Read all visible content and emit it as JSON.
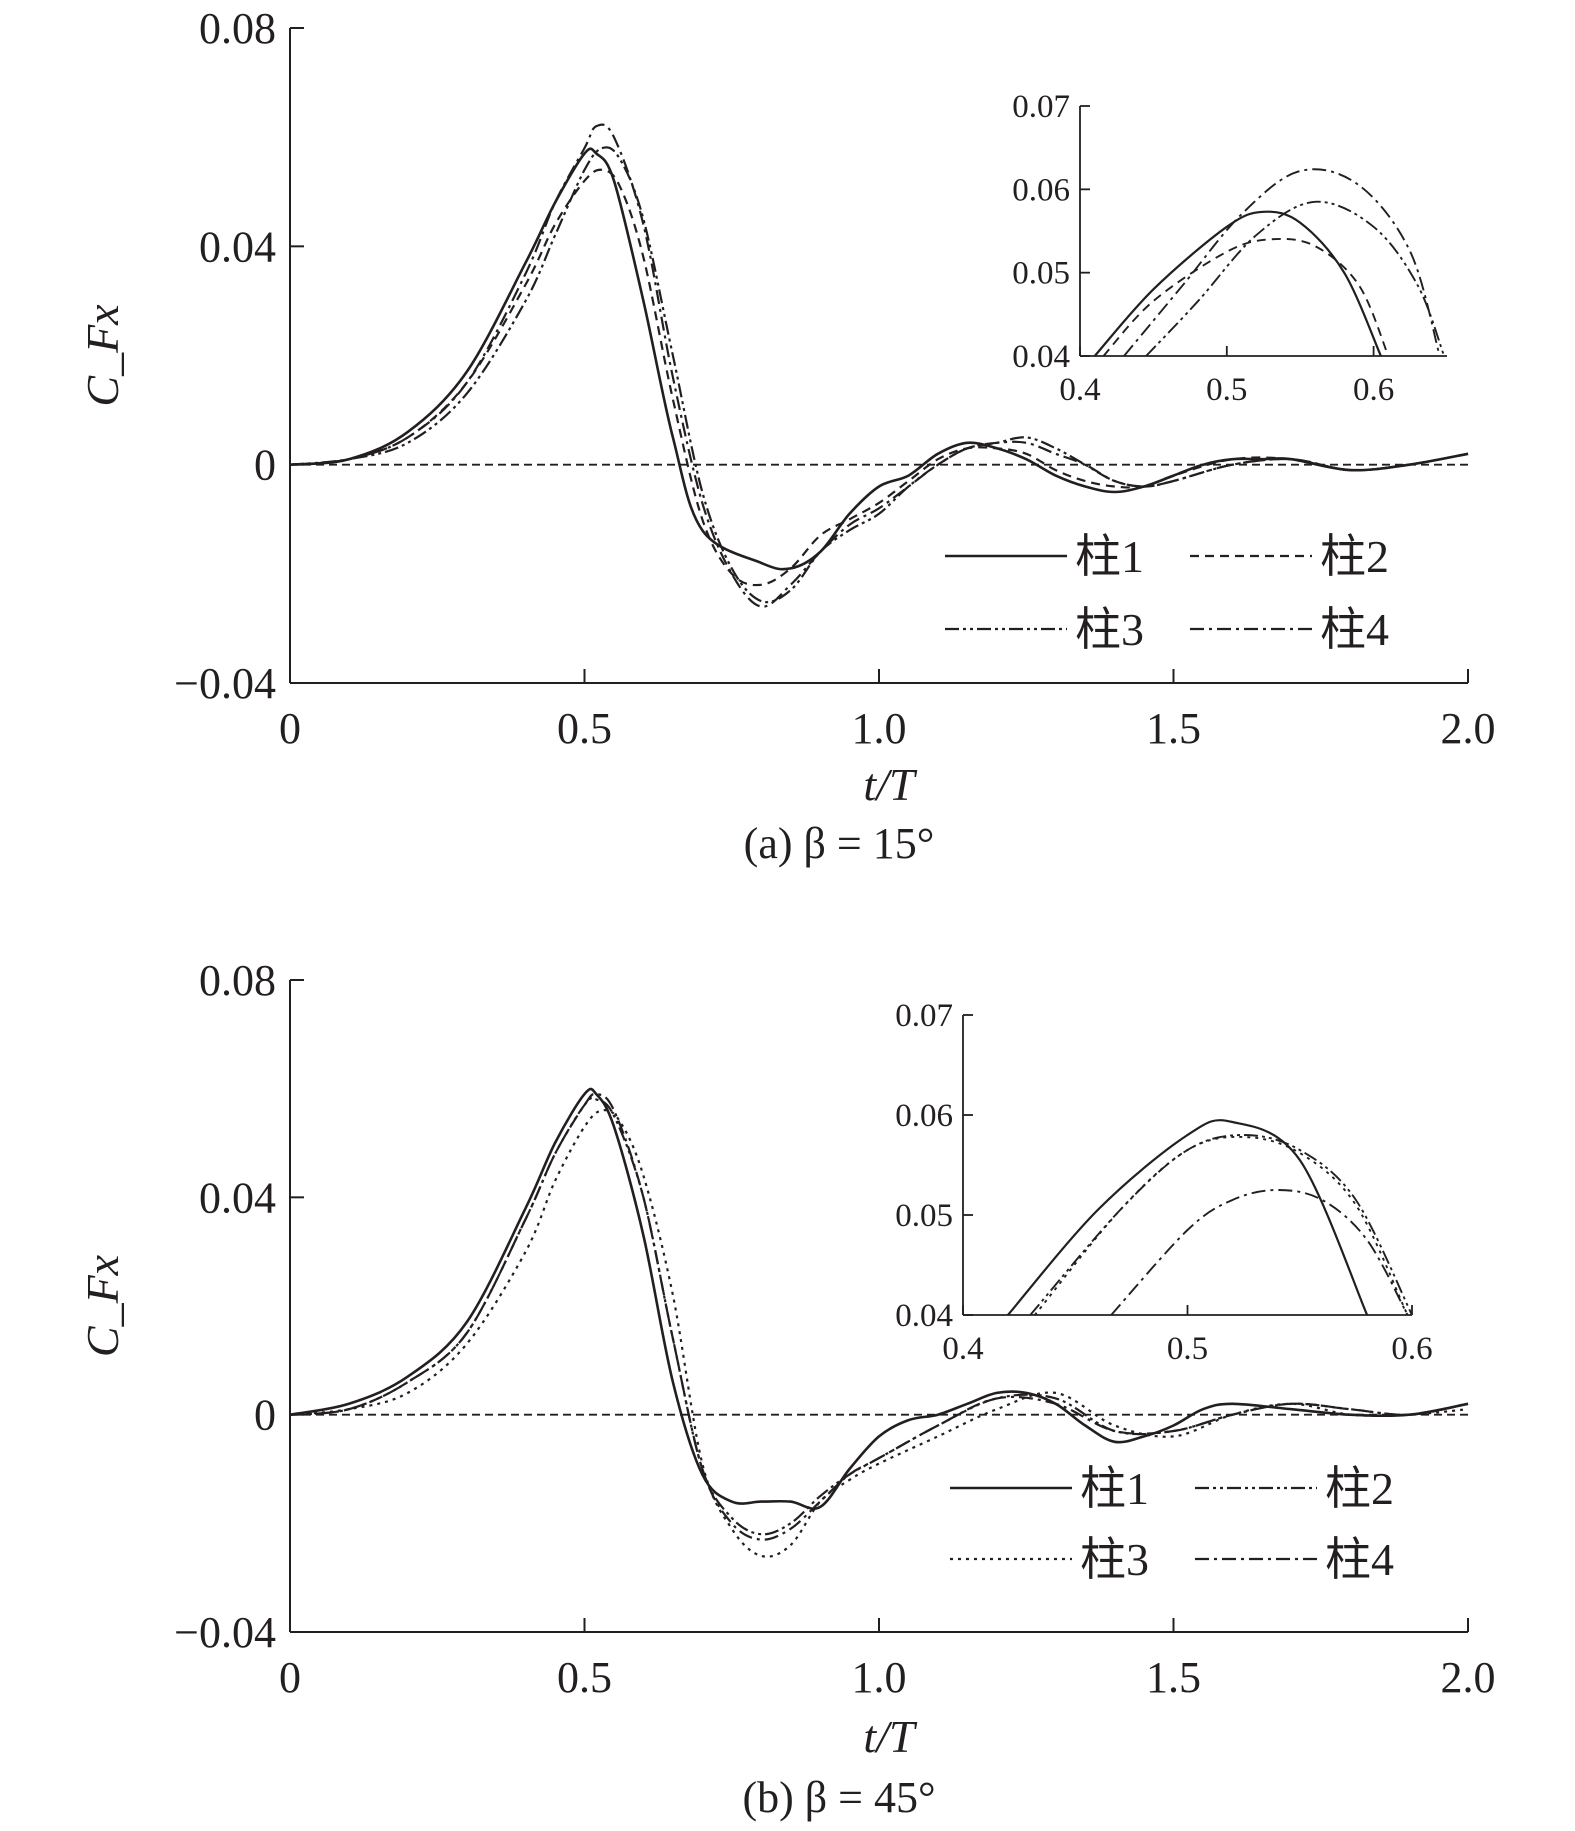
{
  "chart_data": [
    {
      "panel": "a",
      "type": "line",
      "caption": "(a) β = 15°",
      "xlabel": "t/T",
      "ylabel": "C_Fx",
      "xlim": [
        0,
        2.0
      ],
      "ylim": [
        -0.04,
        0.08
      ],
      "xticks": [
        "0",
        "0.5",
        "1.0",
        "1.5",
        "2.0"
      ],
      "yticks": [
        "−0.04",
        "0",
        "0.04",
        "0.08"
      ],
      "legend_position": "lower-right",
      "series": [
        {
          "name": "柱1",
          "dash": "solid",
          "x": [
            0,
            0.1,
            0.2,
            0.3,
            0.4,
            0.45,
            0.5,
            0.52,
            0.55,
            0.6,
            0.65,
            0.7,
            0.8,
            0.85,
            0.9,
            0.95,
            1.0,
            1.05,
            1.1,
            1.15,
            1.2,
            1.25,
            1.3,
            1.35,
            1.4,
            1.45,
            1.5,
            1.55,
            1.6,
            1.65,
            1.7,
            1.8,
            1.9,
            2.0
          ],
          "y": [
            0,
            0.001,
            0.006,
            0.017,
            0.037,
            0.048,
            0.057,
            0.057,
            0.052,
            0.03,
            0.005,
            -0.012,
            -0.018,
            -0.019,
            -0.016,
            -0.009,
            -0.004,
            -0.002,
            0.002,
            0.004,
            0.003,
            0.001,
            -0.002,
            -0.004,
            -0.005,
            -0.004,
            -0.002,
            0,
            0.001,
            0.001,
            0.001,
            -0.001,
            0.0,
            0.002
          ]
        },
        {
          "name": "柱2",
          "dash": "dash",
          "x": [
            0,
            0.1,
            0.2,
            0.3,
            0.4,
            0.45,
            0.5,
            0.53,
            0.56,
            0.6,
            0.65,
            0.7,
            0.75,
            0.8,
            0.85,
            0.9,
            0.95,
            1.0,
            1.05,
            1.1,
            1.15,
            1.2,
            1.25,
            1.3,
            1.35,
            1.4,
            1.45,
            1.5,
            1.6,
            1.7,
            1.8,
            1.9,
            2.0
          ],
          "y": [
            0,
            0.001,
            0.005,
            0.015,
            0.033,
            0.044,
            0.052,
            0.054,
            0.051,
            0.038,
            0.012,
            -0.01,
            -0.02,
            -0.022,
            -0.019,
            -0.013,
            -0.01,
            -0.007,
            -0.003,
            0.001,
            0.003,
            0.003,
            0.002,
            -0.001,
            -0.003,
            -0.004,
            -0.004,
            -0.002,
            0.001,
            0.001,
            -0.001,
            0.0,
            0.002
          ]
        },
        {
          "name": "柱3",
          "dash": "dashdotdot",
          "x": [
            0,
            0.1,
            0.2,
            0.3,
            0.4,
            0.45,
            0.5,
            0.53,
            0.56,
            0.6,
            0.65,
            0.7,
            0.75,
            0.8,
            0.85,
            0.9,
            0.95,
            1.0,
            1.05,
            1.1,
            1.15,
            1.2,
            1.25,
            1.3,
            1.35,
            1.4,
            1.45,
            1.5,
            1.6,
            1.7,
            1.8,
            1.9,
            2.0
          ],
          "y": [
            0,
            0.001,
            0.004,
            0.013,
            0.03,
            0.042,
            0.054,
            0.058,
            0.056,
            0.045,
            0.02,
            -0.005,
            -0.019,
            -0.025,
            -0.023,
            -0.016,
            -0.012,
            -0.009,
            -0.004,
            0.0,
            0.003,
            0.004,
            0.005,
            0.003,
            0.0,
            -0.003,
            -0.004,
            -0.003,
            0.0,
            0.001,
            -0.001,
            0.0,
            0.002
          ]
        },
        {
          "name": "柱4",
          "dash": "dashdot",
          "x": [
            0,
            0.1,
            0.2,
            0.3,
            0.4,
            0.45,
            0.5,
            0.52,
            0.55,
            0.6,
            0.65,
            0.7,
            0.75,
            0.8,
            0.85,
            0.9,
            0.95,
            1.0,
            1.05,
            1.1,
            1.15,
            1.2,
            1.25,
            1.3,
            1.35,
            1.4,
            1.45,
            1.5,
            1.6,
            1.7,
            1.8,
            1.9,
            2.0
          ],
          "y": [
            0,
            0.001,
            0.005,
            0.015,
            0.035,
            0.048,
            0.058,
            0.062,
            0.06,
            0.044,
            0.016,
            -0.007,
            -0.02,
            -0.026,
            -0.022,
            -0.016,
            -0.011,
            -0.008,
            -0.004,
            0.0,
            0.003,
            0.004,
            0.004,
            0.002,
            0.0,
            -0.003,
            -0.004,
            -0.003,
            0.0,
            0.001,
            -0.001,
            0.0,
            0.002
          ]
        }
      ],
      "inset": {
        "xlim": [
          0.4,
          0.65
        ],
        "ylim": [
          0.04,
          0.07
        ],
        "xticks": [
          "0.4",
          "0.5",
          "0.6"
        ],
        "yticks": [
          "0.04",
          "0.05",
          "0.06",
          "0.07"
        ],
        "series": [
          {
            "name": "柱1",
            "x": [
              0.41,
              0.45,
              0.5,
              0.525,
              0.55,
              0.58,
              0.605
            ],
            "y": [
              0.04,
              0.048,
              0.0555,
              0.0573,
              0.056,
              0.05,
              0.04
            ]
          },
          {
            "name": "柱2",
            "x": [
              0.416,
              0.45,
              0.5,
              0.53,
              0.56,
              0.59,
              0.61
            ],
            "y": [
              0.04,
              0.0466,
              0.0525,
              0.054,
              0.0532,
              0.0485,
              0.04
            ]
          },
          {
            "name": "柱3",
            "x": [
              0.445,
              0.48,
              0.52,
              0.56,
              0.6,
              0.63,
              0.648
            ],
            "y": [
              0.04,
              0.0465,
              0.0545,
              0.0585,
              0.0555,
              0.0485,
              0.04
            ]
          },
          {
            "name": "柱4",
            "x": [
              0.43,
              0.47,
              0.51,
              0.55,
              0.59,
              0.625,
              0.645
            ],
            "y": [
              0.04,
              0.0485,
              0.057,
              0.0622,
              0.0605,
              0.0525,
              0.04
            ]
          }
        ]
      }
    },
    {
      "panel": "b",
      "type": "line",
      "caption": "(b) β = 45°",
      "xlabel": "t/T",
      "ylabel": "C_Fx",
      "xlim": [
        0,
        2.0
      ],
      "ylim": [
        -0.04,
        0.08
      ],
      "xticks": [
        "0",
        "0.5",
        "1.0",
        "1.5",
        "2.0"
      ],
      "yticks": [
        "−0.04",
        "0",
        "0.04",
        "0.08"
      ],
      "legend_position": "lower-right",
      "series": [
        {
          "name": "柱1",
          "dash": "solid",
          "x": [
            0,
            0.1,
            0.2,
            0.3,
            0.4,
            0.45,
            0.5,
            0.52,
            0.55,
            0.6,
            0.65,
            0.7,
            0.75,
            0.8,
            0.85,
            0.9,
            0.95,
            1.0,
            1.05,
            1.1,
            1.15,
            1.2,
            1.25,
            1.3,
            1.35,
            1.4,
            1.45,
            1.5,
            1.55,
            1.6,
            1.7,
            1.8,
            1.9,
            2.0
          ],
          "y": [
            0,
            0.002,
            0.007,
            0.017,
            0.038,
            0.05,
            0.059,
            0.059,
            0.053,
            0.033,
            0.006,
            -0.011,
            -0.016,
            -0.016,
            -0.016,
            -0.017,
            -0.01,
            -0.004,
            -0.001,
            0.0,
            0.002,
            0.004,
            0.004,
            0.002,
            -0.002,
            -0.005,
            -0.004,
            -0.002,
            0.001,
            0.002,
            0.001,
            0.0,
            0.0,
            0.002
          ]
        },
        {
          "name": "柱2",
          "dash": "dashdotdot",
          "x": [
            0,
            0.1,
            0.2,
            0.3,
            0.4,
            0.45,
            0.5,
            0.52,
            0.55,
            0.6,
            0.65,
            0.7,
            0.75,
            0.8,
            0.85,
            0.9,
            0.95,
            1.0,
            1.1,
            1.2,
            1.3,
            1.4,
            1.5,
            1.6,
            1.7,
            1.8,
            1.9,
            2.0
          ],
          "y": [
            0,
            0.001,
            0.006,
            0.015,
            0.036,
            0.048,
            0.057,
            0.058,
            0.055,
            0.04,
            0.014,
            -0.01,
            -0.019,
            -0.022,
            -0.02,
            -0.015,
            -0.011,
            -0.008,
            -0.002,
            0.003,
            0.003,
            -0.003,
            -0.003,
            0.0,
            0.002,
            0.001,
            0.0,
            0.002
          ]
        },
        {
          "name": "柱3",
          "dash": "dot",
          "x": [
            0,
            0.1,
            0.2,
            0.3,
            0.4,
            0.45,
            0.5,
            0.53,
            0.56,
            0.6,
            0.65,
            0.7,
            0.75,
            0.8,
            0.85,
            0.9,
            0.95,
            1.0,
            1.1,
            1.2,
            1.3,
            1.4,
            1.5,
            1.6,
            1.7,
            1.8,
            1.9,
            2.0
          ],
          "y": [
            0,
            0.001,
            0.004,
            0.013,
            0.03,
            0.043,
            0.053,
            0.056,
            0.054,
            0.044,
            0.022,
            -0.009,
            -0.021,
            -0.026,
            -0.024,
            -0.016,
            -0.012,
            -0.009,
            -0.004,
            0.001,
            0.004,
            -0.002,
            -0.004,
            0.0,
            0.002,
            0.0,
            0.0,
            0.001
          ]
        },
        {
          "name": "柱4",
          "dash": "dashdot",
          "x": [
            0,
            0.1,
            0.2,
            0.3,
            0.4,
            0.45,
            0.5,
            0.52,
            0.55,
            0.6,
            0.65,
            0.7,
            0.75,
            0.8,
            0.85,
            0.9,
            0.95,
            1.0,
            1.1,
            1.2,
            1.3,
            1.4,
            1.5,
            1.6,
            1.7,
            1.8,
            1.9,
            2.0
          ],
          "y": [
            0,
            0.001,
            0.006,
            0.015,
            0.036,
            0.048,
            0.057,
            0.059,
            0.056,
            0.04,
            0.014,
            -0.01,
            -0.02,
            -0.023,
            -0.021,
            -0.016,
            -0.011,
            -0.008,
            -0.002,
            0.003,
            0.002,
            -0.003,
            -0.003,
            0.0,
            0.002,
            0.001,
            0.0,
            0.002
          ]
        }
      ],
      "inset": {
        "xlim": [
          0.4,
          0.6
        ],
        "ylim": [
          0.04,
          0.07
        ],
        "xticks": [
          "0.4",
          "0.5",
          "0.6"
        ],
        "yticks": [
          "0.04",
          "0.05",
          "0.06",
          "0.07"
        ],
        "series": [
          {
            "name": "柱1",
            "x": [
              0.42,
              0.46,
              0.5,
              0.52,
              0.55,
              0.58
            ],
            "y": [
              0.04,
              0.0505,
              0.058,
              0.0593,
              0.0555,
              0.04
            ]
          },
          {
            "name": "柱2",
            "x": [
              0.43,
              0.47,
              0.5,
              0.525,
              0.55,
              0.575,
              0.6
            ],
            "y": [
              0.04,
              0.0505,
              0.0565,
              0.058,
              0.0565,
              0.0515,
              0.04
            ]
          },
          {
            "name": "柱3",
            "x": [
              0.432,
              0.47,
              0.5,
              0.525,
              0.55,
              0.575,
              0.598
            ],
            "y": [
              0.04,
              0.0505,
              0.0565,
              0.0578,
              0.0562,
              0.051,
              0.04
            ]
          },
          {
            "name": "柱4",
            "x": [
              0.466,
              0.5,
              0.52,
              0.54,
              0.56,
              0.58,
              0.598
            ],
            "y": [
              0.04,
              0.0485,
              0.0515,
              0.0525,
              0.0515,
              0.0475,
              0.04
            ]
          }
        ]
      }
    }
  ]
}
